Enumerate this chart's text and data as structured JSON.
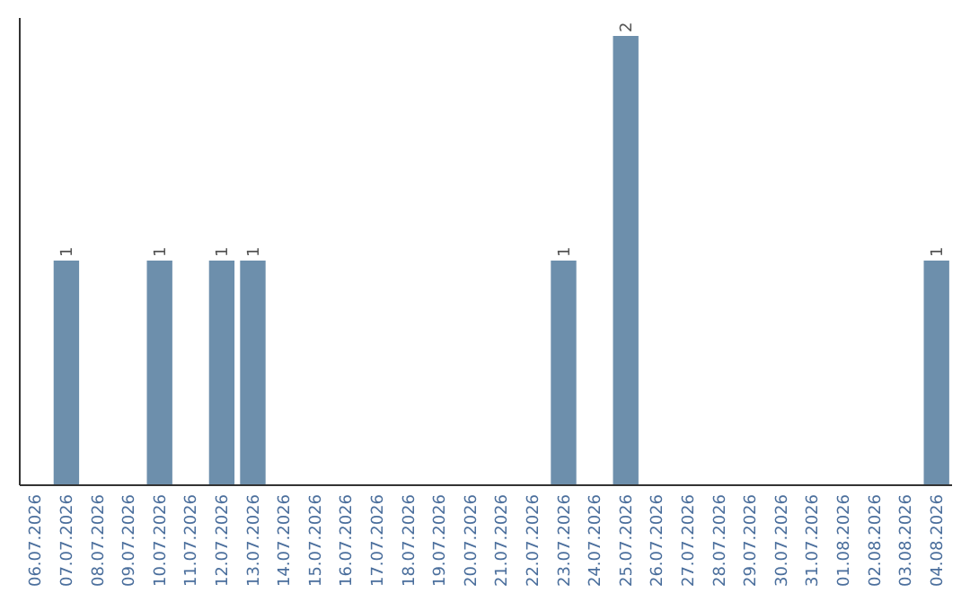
{
  "chart_data": {
    "type": "bar",
    "categories": [
      "06.07.2026",
      "07.07.2026",
      "08.07.2026",
      "09.07.2026",
      "10.07.2026",
      "11.07.2026",
      "12.07.2026",
      "13.07.2026",
      "14.07.2026",
      "15.07.2026",
      "16.07.2026",
      "17.07.2026",
      "18.07.2026",
      "19.07.2026",
      "20.07.2026",
      "21.07.2026",
      "22.07.2026",
      "23.07.2026",
      "24.07.2026",
      "25.07.2026",
      "26.07.2026",
      "27.07.2026",
      "28.07.2026",
      "29.07.2026",
      "30.07.2026",
      "31.07.2026",
      "01.08.2026",
      "02.08.2026",
      "03.08.2026",
      "04.08.2026"
    ],
    "values": [
      0,
      1,
      0,
      0,
      1,
      0,
      1,
      1,
      0,
      0,
      0,
      0,
      0,
      0,
      0,
      0,
      0,
      1,
      0,
      2,
      0,
      0,
      0,
      0,
      0,
      0,
      0,
      0,
      0,
      1
    ],
    "value_labels": [
      null,
      "1",
      null,
      null,
      "1",
      null,
      "1",
      "1",
      null,
      null,
      null,
      null,
      null,
      null,
      null,
      null,
      null,
      "1",
      null,
      "2",
      null,
      null,
      null,
      null,
      null,
      null,
      null,
      null,
      null,
      "1"
    ],
    "color": "#6d8fac",
    "tick_labels": "x",
    "grid": false
  }
}
